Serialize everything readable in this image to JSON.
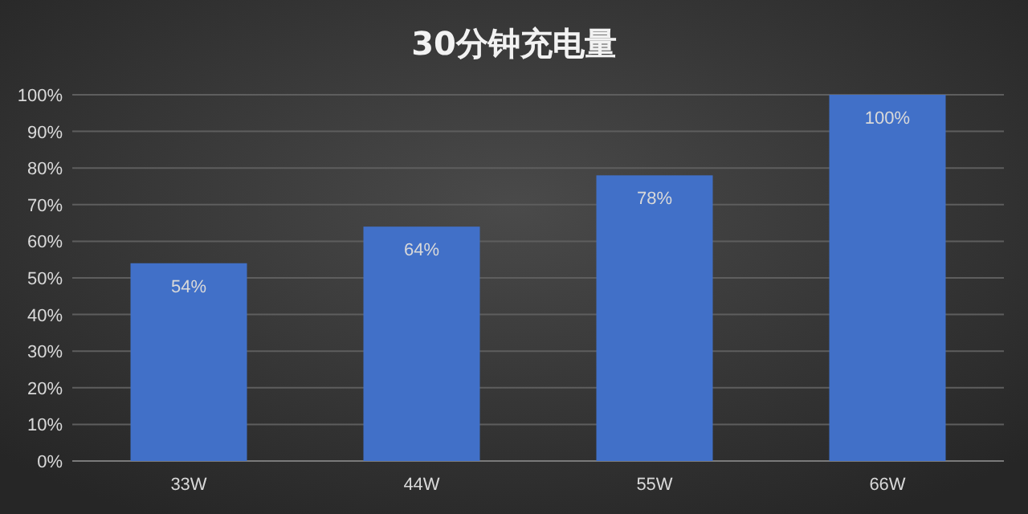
{
  "chart_data": {
    "type": "bar",
    "title": "30分钟充电量",
    "categories": [
      "33W",
      "44W",
      "55W",
      "66W"
    ],
    "values": [
      54,
      64,
      78,
      100
    ],
    "color": "#4170c8",
    "ylim": [
      0,
      100
    ],
    "yticks": [
      {
        "value": 0,
        "label": "0%"
      },
      {
        "value": 10,
        "label": "10%"
      },
      {
        "value": 20,
        "label": "20%"
      },
      {
        "value": 30,
        "label": "30%"
      },
      {
        "value": 40,
        "label": "40%"
      },
      {
        "value": 50,
        "label": "50%"
      },
      {
        "value": 60,
        "label": "60%"
      },
      {
        "value": 70,
        "label": "70%"
      },
      {
        "value": 80,
        "label": "80%"
      },
      {
        "value": 90,
        "label": "90%"
      },
      {
        "value": 100,
        "label": "100%"
      }
    ],
    "grid": "y",
    "value_labels": [
      "54%",
      "64%",
      "78%",
      "100%"
    ]
  }
}
